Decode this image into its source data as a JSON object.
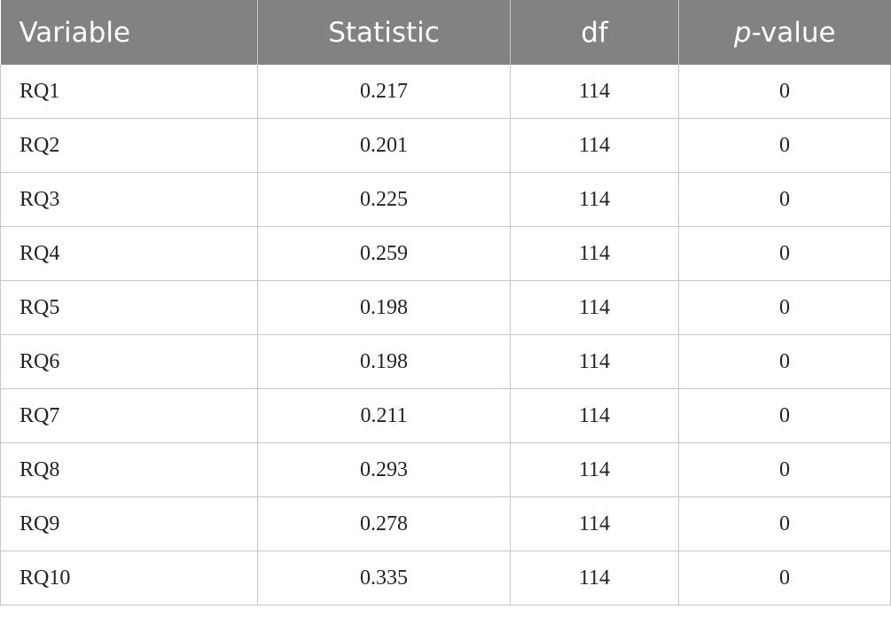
{
  "table": {
    "headers": {
      "variable": "Variable",
      "statistic": "Statistic",
      "df": "df",
      "p_italic": "p",
      "p_rest": "-value"
    },
    "rows": [
      {
        "variable": "RQ1",
        "statistic": "0.217",
        "df": "114",
        "p_value": "0"
      },
      {
        "variable": "RQ2",
        "statistic": "0.201",
        "df": "114",
        "p_value": "0"
      },
      {
        "variable": "RQ3",
        "statistic": "0.225",
        "df": "114",
        "p_value": "0"
      },
      {
        "variable": "RQ4",
        "statistic": "0.259",
        "df": "114",
        "p_value": "0"
      },
      {
        "variable": "RQ5",
        "statistic": "0.198",
        "df": "114",
        "p_value": "0"
      },
      {
        "variable": "RQ6",
        "statistic": "0.198",
        "df": "114",
        "p_value": "0"
      },
      {
        "variable": "RQ7",
        "statistic": "0.211",
        "df": "114",
        "p_value": "0"
      },
      {
        "variable": "RQ8",
        "statistic": "0.293",
        "df": "114",
        "p_value": "0"
      },
      {
        "variable": "RQ9",
        "statistic": "0.278",
        "df": "114",
        "p_value": "0"
      },
      {
        "variable": "RQ10",
        "statistic": "0.335",
        "df": "114",
        "p_value": "0"
      }
    ],
    "colors": {
      "header_bg": "#808284",
      "header_text": "#ffffff",
      "grid": "#c6c6c6"
    }
  }
}
